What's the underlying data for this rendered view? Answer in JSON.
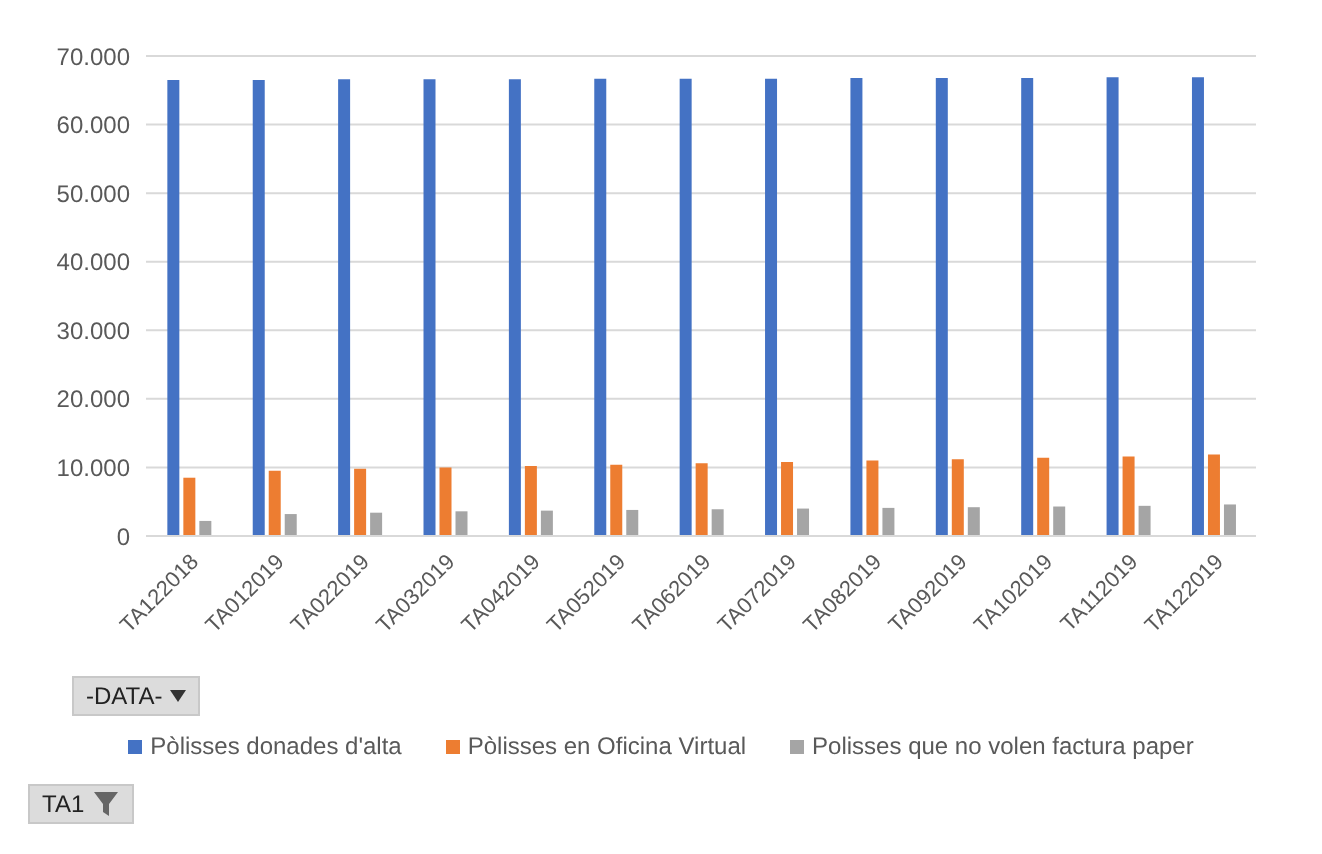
{
  "chart_data": {
    "type": "bar",
    "categories": [
      "TA122018",
      "TA012019",
      "TA022019",
      "TA032019",
      "TA042019",
      "TA052019",
      "TA062019",
      "TA072019",
      "TA082019",
      "TA092019",
      "TA102019",
      "TA112019",
      "TA122019"
    ],
    "series": [
      {
        "name": "Pòlisses donades d'alta",
        "color": "#4472c4",
        "values": [
          66500,
          66500,
          66600,
          66600,
          66600,
          66700,
          66700,
          66700,
          66800,
          66800,
          66800,
          66900,
          66900
        ]
      },
      {
        "name": "Pòlisses en Oficina Virtual",
        "color": "#ed7d31",
        "values": [
          8500,
          9500,
          9800,
          10000,
          10200,
          10400,
          10600,
          10800,
          11000,
          11200,
          11400,
          11600,
          11900
        ]
      },
      {
        "name": "Polisses que no volen factura paper",
        "color": "#a5a5a5",
        "values": [
          2200,
          3200,
          3400,
          3600,
          3700,
          3800,
          3900,
          4000,
          4100,
          4200,
          4300,
          4400,
          4600
        ]
      }
    ],
    "ylim": [
      0,
      70000
    ],
    "yticks": [
      {
        "value": 0,
        "label": "0"
      },
      {
        "value": 10000,
        "label": "10.000"
      },
      {
        "value": 20000,
        "label": "20.000"
      },
      {
        "value": 30000,
        "label": "30.000"
      },
      {
        "value": 40000,
        "label": "40.000"
      },
      {
        "value": 50000,
        "label": "50.000"
      },
      {
        "value": 60000,
        "label": "60.000"
      },
      {
        "value": 70000,
        "label": "70.000"
      }
    ],
    "grid": "y",
    "legend": "bottom",
    "annotations": [
      "-DATA-",
      "TA1"
    ]
  }
}
